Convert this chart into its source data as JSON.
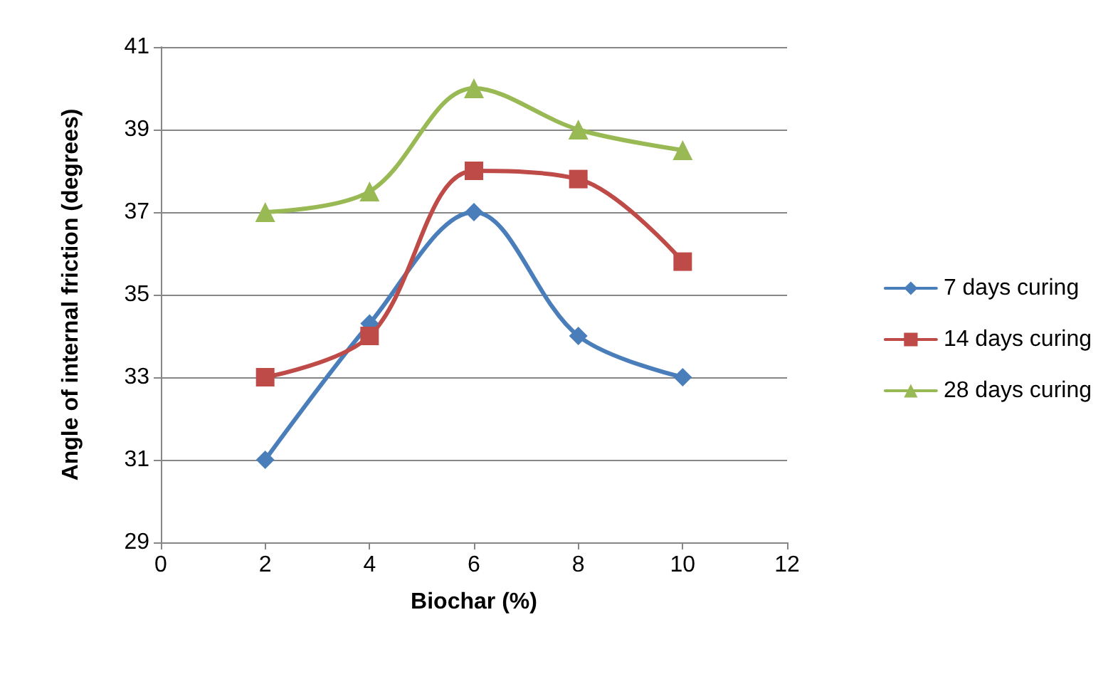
{
  "chart_data": {
    "type": "line",
    "xlabel": "Biochar (%)",
    "ylabel": "Angle of internal friction (degrees)",
    "x": [
      2,
      4,
      6,
      8,
      10
    ],
    "series": [
      {
        "name": "7 days curing",
        "color": "#4a7ebb",
        "marker": "diamond",
        "values": [
          31,
          34.3,
          37,
          34,
          33
        ]
      },
      {
        "name": "14 days curing",
        "color": "#be4b48",
        "marker": "square",
        "values": [
          33,
          34,
          38,
          37.8,
          35.8
        ]
      },
      {
        "name": "28 days curing",
        "color": "#98b954",
        "marker": "triangle",
        "values": [
          37,
          37.5,
          40,
          39,
          38.5
        ]
      }
    ],
    "xlim": [
      0,
      12
    ],
    "xticks": [
      0,
      2,
      4,
      6,
      8,
      10,
      12
    ],
    "ylim": [
      29,
      41
    ],
    "yticks": [
      29,
      31,
      33,
      35,
      37,
      39,
      41
    ],
    "grid": "y",
    "legend": "right",
    "line_style": "solid"
  }
}
